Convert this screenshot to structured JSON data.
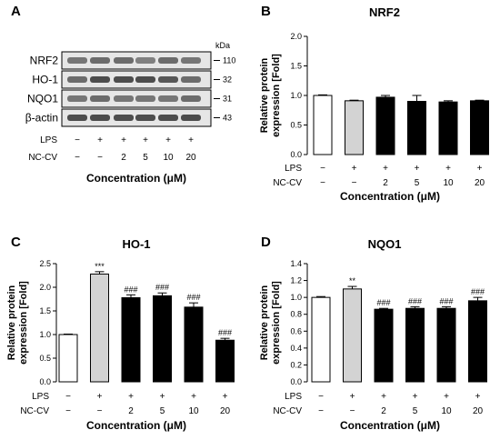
{
  "panels": {
    "A": {
      "letter": "A",
      "unit_label": "kDa",
      "blots": [
        {
          "label": "NRF2",
          "kda": "110"
        },
        {
          "label": "HO-1",
          "kda": "32"
        },
        {
          "label": "NQO1",
          "kda": "31"
        },
        {
          "label": "β-actin",
          "kda": "43"
        }
      ],
      "row_labels": [
        "LPS",
        "NC-CV"
      ],
      "lps": [
        "−",
        "+",
        "+",
        "+",
        "+",
        "+"
      ],
      "nccv": [
        "−",
        "−",
        "2",
        "5",
        "10",
        "20"
      ],
      "xlabel": "Concentration (μM)"
    }
  },
  "chart_data": [
    {
      "panel": "B",
      "type": "bar",
      "title": "NRF2",
      "ylabel": "Relative protein expression [Fold]",
      "xlabel": "Concentration (μM)",
      "ylim": [
        0,
        2.0
      ],
      "yticks": [
        "0.0",
        "0.5",
        "1.0",
        "1.5",
        "2.0"
      ],
      "row_labels": [
        "LPS",
        "NC-CV"
      ],
      "lps": [
        "−",
        "+",
        "+",
        "+",
        "+",
        "+"
      ],
      "nccv": [
        "−",
        "−",
        "2",
        "5",
        "10",
        "20"
      ],
      "values": [
        1.0,
        0.91,
        0.97,
        0.9,
        0.89,
        0.91
      ],
      "errors": [
        0.01,
        0.01,
        0.03,
        0.1,
        0.02,
        0.01
      ],
      "fills": [
        "#ffffff",
        "#d3d3d3",
        "#000000",
        "#000000",
        "#000000",
        "#000000"
      ],
      "labels": [
        "",
        "",
        "",
        "",
        "",
        ""
      ]
    },
    {
      "panel": "C",
      "type": "bar",
      "title": "HO-1",
      "ylabel": "Relative protein expression [Fold]",
      "xlabel": "Concentration (μM)",
      "ylim": [
        0,
        2.5
      ],
      "yticks": [
        "0.0",
        "0.5",
        "1.0",
        "1.5",
        "2.0",
        "2.5"
      ],
      "row_labels": [
        "LPS",
        "NC-CV"
      ],
      "lps": [
        "−",
        "+",
        "+",
        "+",
        "+",
        "+"
      ],
      "nccv": [
        "−",
        "−",
        "2",
        "5",
        "10",
        "20"
      ],
      "values": [
        1.0,
        2.28,
        1.78,
        1.82,
        1.58,
        0.88
      ],
      "errors": [
        0.01,
        0.05,
        0.06,
        0.06,
        0.09,
        0.04
      ],
      "fills": [
        "#ffffff",
        "#d3d3d3",
        "#000000",
        "#000000",
        "#000000",
        "#000000"
      ],
      "labels": [
        "",
        "***",
        "###",
        "###",
        "###",
        "###"
      ]
    },
    {
      "panel": "D",
      "type": "bar",
      "title": "NQO1",
      "ylabel": "Relative protein expression [Fold]",
      "xlabel": "Concentration (μM)",
      "ylim": [
        0,
        1.4
      ],
      "yticks": [
        "0.0",
        "0.2",
        "0.4",
        "0.6",
        "0.8",
        "1.0",
        "1.2",
        "1.4"
      ],
      "row_labels": [
        "LPS",
        "NC-CV"
      ],
      "lps": [
        "−",
        "+",
        "+",
        "+",
        "+",
        "+"
      ],
      "nccv": [
        "−",
        "−",
        "2",
        "5",
        "10",
        "20"
      ],
      "values": [
        1.0,
        1.1,
        0.86,
        0.87,
        0.87,
        0.96
      ],
      "errors": [
        0.01,
        0.03,
        0.01,
        0.02,
        0.02,
        0.04
      ],
      "fills": [
        "#ffffff",
        "#d3d3d3",
        "#000000",
        "#000000",
        "#000000",
        "#000000"
      ],
      "labels": [
        "",
        "**",
        "###",
        "###",
        "###",
        "###"
      ]
    }
  ],
  "panel_letters": [
    "B",
    "C",
    "D"
  ]
}
